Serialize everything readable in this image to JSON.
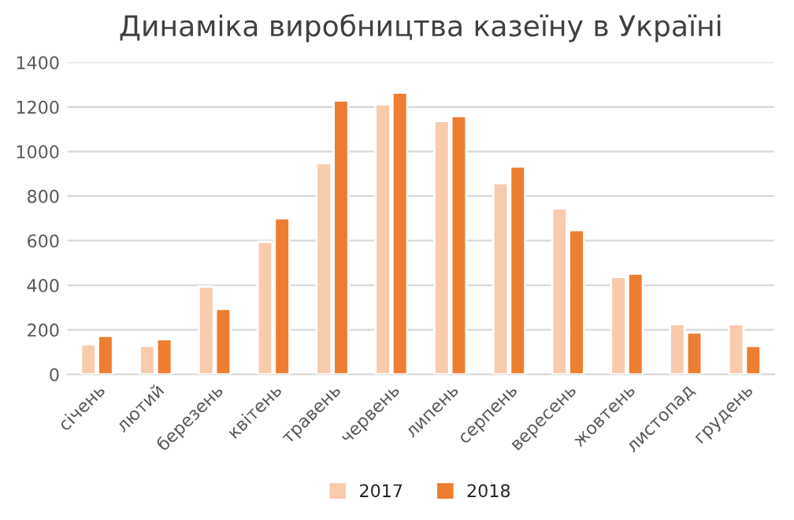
{
  "chart_data": {
    "type": "bar",
    "title": "Динаміка виробництва казеїну в Україні",
    "categories": [
      "січень",
      "лютий",
      "березень",
      "квітень",
      "травень",
      "червень",
      "липень",
      "серпень",
      "вересень",
      "жовтень",
      "листопад",
      "грудень"
    ],
    "series": [
      {
        "name": "2017",
        "color": "#f8cbad",
        "values": [
          135,
          128,
          394,
          595,
          948,
          1212,
          1137,
          858,
          745,
          437,
          226,
          226
        ]
      },
      {
        "name": "2018",
        "color": "#ed7d31",
        "values": [
          173,
          158,
          294,
          700,
          1229,
          1264,
          1159,
          933,
          647,
          452,
          188,
          128
        ]
      }
    ],
    "ylim": [
      0,
      1400
    ],
    "yticks": [
      0,
      200,
      400,
      600,
      800,
      1000,
      1200,
      1400
    ],
    "grid": "y",
    "legend": "bottom"
  }
}
